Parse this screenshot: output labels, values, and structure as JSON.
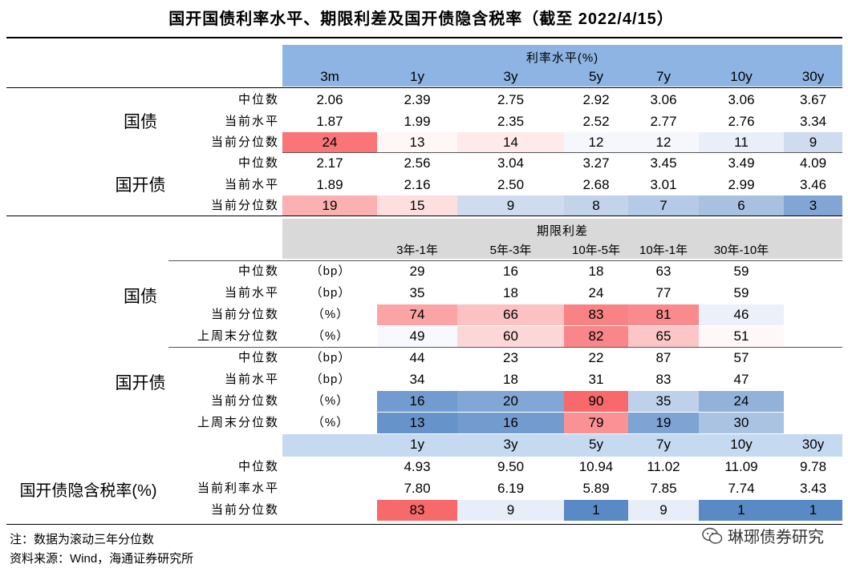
{
  "title": "国开国债利率水平、期限利差及国开债隐含税率（截至 2022/4/15）",
  "colors": {
    "blue_header": "#8db4e2",
    "grey_header": "#d9d9d9",
    "lightblue_header": "#c5d9f1",
    "red_strong": "#f8696b",
    "blue_strong": "#5a8ac6"
  },
  "section1": {
    "band_title": "利率水平(%)",
    "columns": [
      "3m",
      "1y",
      "3y",
      "5y",
      "7y",
      "10y",
      "30y"
    ],
    "groups": [
      {
        "name": "国债",
        "rows": [
          {
            "label": "中位数",
            "values": [
              "2.06",
              "2.39",
              "2.75",
              "2.92",
              "3.06",
              "3.06",
              "3.67"
            ]
          },
          {
            "label": "当前水平",
            "values": [
              "1.87",
              "1.99",
              "2.35",
              "2.52",
              "2.77",
              "2.76",
              "3.34"
            ]
          },
          {
            "label": "当前分位数",
            "values": [
              "24",
              "13",
              "14",
              "12",
              "12",
              "11",
              "9"
            ]
          }
        ]
      },
      {
        "name": "国开债",
        "rows": [
          {
            "label": "中位数",
            "values": [
              "2.17",
              "2.56",
              "3.04",
              "3.27",
              "3.45",
              "3.49",
              "4.09"
            ]
          },
          {
            "label": "当前水平",
            "values": [
              "1.89",
              "2.16",
              "2.50",
              "2.68",
              "3.01",
              "2.99",
              "3.46"
            ]
          },
          {
            "label": "当前分位数",
            "values": [
              "19",
              "15",
              "9",
              "8",
              "7",
              "6",
              "3"
            ]
          }
        ]
      }
    ]
  },
  "section2": {
    "band_title": "期限利差",
    "columns": [
      "3年-1年",
      "5年-3年",
      "10年-5年",
      "10年-1年",
      "30年-10年"
    ],
    "groups": [
      {
        "name": "国债",
        "rows": [
          {
            "label": "中位数",
            "unit": "（bp）",
            "values": [
              "29",
              "16",
              "18",
              "63",
              "59"
            ]
          },
          {
            "label": "当前水平",
            "unit": "（bp）",
            "values": [
              "35",
              "18",
              "24",
              "77",
              "59"
            ]
          },
          {
            "label": "当前分位数",
            "unit": "（%）",
            "values": [
              "74",
              "66",
              "83",
              "81",
              "46"
            ]
          },
          {
            "label": "上周末分位数",
            "unit": "（%）",
            "values": [
              "49",
              "60",
              "82",
              "65",
              "51"
            ]
          }
        ]
      },
      {
        "name": "国开债",
        "rows": [
          {
            "label": "中位数",
            "unit": "（bp）",
            "values": [
              "44",
              "23",
              "22",
              "87",
              "57"
            ]
          },
          {
            "label": "当前水平",
            "unit": "（bp）",
            "values": [
              "34",
              "18",
              "31",
              "83",
              "47"
            ]
          },
          {
            "label": "当前分位数",
            "unit": "（%）",
            "values": [
              "16",
              "20",
              "90",
              "35",
              "24"
            ]
          },
          {
            "label": "上周末分位数",
            "unit": "（%）",
            "values": [
              "13",
              "16",
              "79",
              "19",
              "30"
            ]
          }
        ]
      }
    ]
  },
  "section3": {
    "group_name": "国开债隐含税率(%)",
    "columns": [
      "1y",
      "3y",
      "5y",
      "7y",
      "10y",
      "30y"
    ],
    "rows": [
      {
        "label": "中位数",
        "values": [
          "4.93",
          "9.50",
          "10.94",
          "11.02",
          "11.09",
          "9.78"
        ]
      },
      {
        "label": "当前利率水平",
        "values": [
          "7.80",
          "6.19",
          "5.89",
          "7.85",
          "7.74",
          "3.43"
        ]
      },
      {
        "label": "当前分位数",
        "values": [
          "83",
          "9",
          "1",
          "9",
          "1",
          "1"
        ]
      }
    ]
  },
  "notes": {
    "note": "注：数据为滚动三年分位数",
    "source": "资料来源：Wind，海通证券研究所"
  },
  "watermark": "琳琊债券研究"
}
